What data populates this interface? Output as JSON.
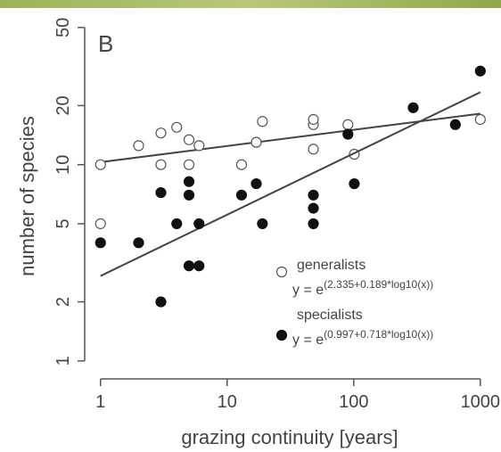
{
  "chart_data": {
    "type": "scatter",
    "panel_label": "B",
    "x_label": "grazing continuity [years]",
    "y_label": "number of species",
    "log_x": true,
    "log_y": true,
    "xlim": [
      0.75,
      1300
    ],
    "ylim": [
      0.81,
      56
    ],
    "xticks": [
      1,
      10,
      100,
      1000
    ],
    "yticks": [
      1,
      2,
      5,
      10,
      20,
      50
    ],
    "series": [
      {
        "name": "generalists",
        "color": "#555555",
        "filled": false,
        "x": [
          1,
          1,
          2,
          3,
          3,
          4,
          5,
          5,
          6,
          13,
          17,
          19,
          48,
          48,
          48,
          90,
          101,
          1000
        ],
        "values": [
          10,
          5,
          12.5,
          14.5,
          10,
          15.5,
          13.4,
          10,
          12.5,
          10,
          13,
          16.6,
          16,
          17,
          12,
          16,
          11.3,
          17
        ],
        "fit": {
          "x": [
            1,
            1000
          ],
          "values": [
            10.3,
            18.2
          ]
        },
        "formula_base": "y = e",
        "formula_exp": "(2.335+0.189*log10(x))"
      },
      {
        "name": "specialists",
        "color": "#111111",
        "filled": true,
        "x": [
          1,
          2,
          3,
          3,
          4,
          5,
          5,
          5,
          6,
          6,
          13,
          17,
          19,
          48,
          48,
          48,
          90,
          101,
          295,
          635,
          1000
        ],
        "values": [
          4,
          4,
          7.2,
          2,
          5,
          8.2,
          7,
          3.05,
          5,
          3.05,
          7,
          8,
          5,
          7,
          6,
          5,
          14.3,
          8,
          19.5,
          16,
          30
        ],
        "fit": {
          "x": [
            1,
            1000
          ],
          "values": [
            2.71,
            23.4
          ]
        },
        "formula_base": "y = e",
        "formula_exp": "(0.997+0.718*log10(x))"
      }
    ]
  }
}
